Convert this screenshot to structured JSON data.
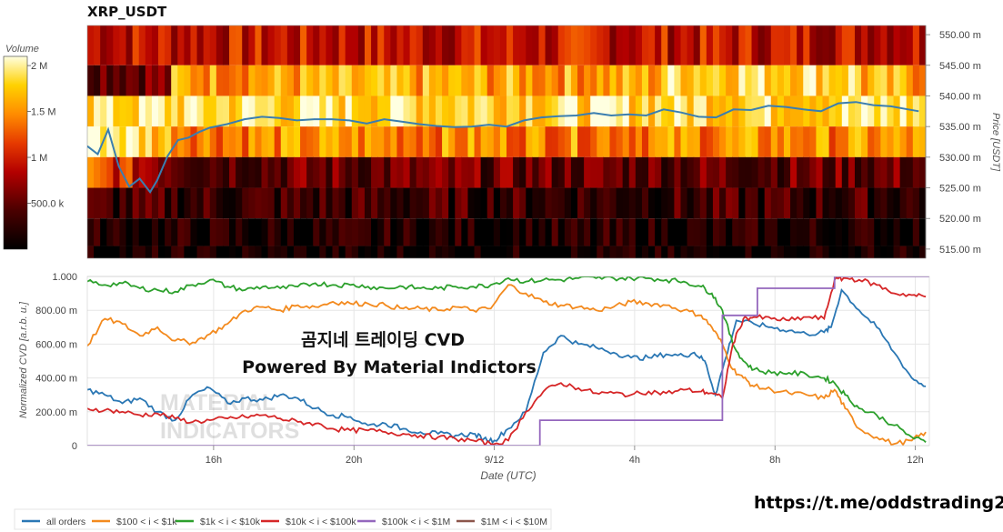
{
  "title": "XRP_USDT",
  "promo_url": "https://t.me/oddstrading2",
  "chart_data": [
    {
      "type": "heatmap",
      "title": "XRP_USDT",
      "ylabel": "Price [USDT]",
      "colorbar_title": "Volume",
      "colorbar_ticks": [
        "2 M",
        "1.5 M",
        "1 M",
        "500.0 k"
      ],
      "colorbar_values": [
        2000000,
        1500000,
        1000000,
        500000
      ],
      "y_ticks": [
        "550.00 m",
        "545.00 m",
        "540.00 m",
        "535.00 m",
        "530.00 m",
        "525.00 m",
        "520.00 m",
        "515.00 m"
      ],
      "y_values": [
        0.55,
        0.545,
        0.54,
        0.535,
        0.53,
        0.525,
        0.52,
        0.515
      ],
      "ylim": [
        0.5135,
        0.5515
      ],
      "price_bins": [
        0.5475,
        0.5425,
        0.5375,
        0.5325,
        0.5275,
        0.5225,
        0.5175,
        0.5135
      ],
      "bin_intensity_levels": [
        0.45,
        0.75,
        0.9,
        0.7,
        0.25,
        0.15,
        0.06,
        0.02
      ],
      "price_line": {
        "color": "#3a7eb0",
        "x_hours": [
          0,
          0.3,
          0.6,
          0.9,
          1.2,
          1.5,
          1.8,
          2.0,
          2.3,
          2.6,
          2.9,
          3.2,
          3.5,
          4.0,
          4.5,
          5.0,
          5.5,
          6.0,
          6.5,
          7.0,
          7.5,
          8.0,
          8.5,
          9.0,
          9.5,
          10.0,
          10.5,
          11.0,
          11.5,
          12.0,
          12.5,
          13.0,
          13.5,
          14.0,
          14.5,
          15.0,
          15.5,
          16.0,
          16.5,
          17.0,
          17.5,
          18.0,
          18.5,
          19.0,
          19.5,
          20.0,
          20.5,
          21.0,
          21.5,
          22.0,
          22.5,
          23.0,
          23.5,
          23.8
        ],
        "price": [
          0.5318,
          0.5305,
          0.5345,
          0.5285,
          0.5252,
          0.5265,
          0.5243,
          0.5262,
          0.5302,
          0.5328,
          0.5332,
          0.5341,
          0.5348,
          0.5354,
          0.5362,
          0.5366,
          0.5364,
          0.536,
          0.5362,
          0.5362,
          0.536,
          0.5355,
          0.5362,
          0.5358,
          0.5354,
          0.5351,
          0.5349,
          0.535,
          0.5353,
          0.535,
          0.536,
          0.5365,
          0.5367,
          0.5368,
          0.5372,
          0.5368,
          0.537,
          0.5368,
          0.5378,
          0.5373,
          0.5366,
          0.5365,
          0.5378,
          0.5377,
          0.5384,
          0.5382,
          0.5378,
          0.5375,
          0.5388,
          0.539,
          0.5385,
          0.5383,
          0.5378,
          0.5375
        ]
      }
    },
    {
      "type": "line",
      "xlabel": "Date (UTC)",
      "ylabel": "Normalized CVD [a.r.b. u.]",
      "y_ticks": [
        "1.000",
        "800.00 m",
        "600.00 m",
        "400.00 m",
        "200.00 m",
        "0"
      ],
      "y_values": [
        1.0,
        0.8,
        0.6,
        0.4,
        0.2,
        0
      ],
      "ylim": [
        0,
        1.0
      ],
      "x_ticks": [
        "16h",
        "20h",
        "9/12",
        "4h",
        "8h",
        "12h"
      ],
      "x_tick_hours": [
        3.6,
        7.6,
        11.6,
        15.6,
        19.6,
        23.6
      ],
      "xlim_hours": [
        0,
        24
      ],
      "grid": true,
      "overlay_lines": [
        "곰지네 트레이딩 CVD",
        "Powered By Material Indictors"
      ],
      "watermark_lines": [
        "MATERIAL",
        "INDICATORS"
      ],
      "legend_position": "bottom-left",
      "series": [
        {
          "name": "all orders",
          "color": "#2a77b4",
          "x_hours": [
            0,
            0.5,
            1.0,
            1.5,
            2.0,
            2.5,
            3.0,
            3.5,
            4.0,
            4.5,
            5.0,
            5.5,
            6.0,
            6.5,
            7.0,
            7.5,
            8.0,
            8.5,
            9.0,
            9.5,
            10.0,
            10.5,
            11.0,
            11.3,
            11.6,
            12.0,
            12.5,
            13.0,
            13.5,
            14.0,
            14.5,
            15.0,
            15.5,
            16.0,
            16.5,
            17.0,
            17.3,
            17.6,
            17.9,
            18.2,
            18.5,
            19.0,
            19.5,
            20.0,
            20.5,
            21.0,
            21.2,
            21.5,
            22.0,
            22.5,
            23.0,
            23.5,
            23.9
          ],
          "values": [
            0.33,
            0.3,
            0.25,
            0.28,
            0.2,
            0.15,
            0.3,
            0.34,
            0.25,
            0.28,
            0.27,
            0.3,
            0.28,
            0.22,
            0.18,
            0.17,
            0.12,
            0.13,
            0.1,
            0.08,
            0.07,
            0.06,
            0.07,
            0.04,
            0.03,
            0.1,
            0.2,
            0.55,
            0.65,
            0.6,
            0.58,
            0.55,
            0.52,
            0.52,
            0.54,
            0.53,
            0.55,
            0.5,
            0.3,
            0.52,
            0.74,
            0.72,
            0.7,
            0.68,
            0.66,
            0.67,
            0.7,
            0.92,
            0.8,
            0.7,
            0.55,
            0.4,
            0.35
          ]
        },
        {
          "name": "$100 < i < $1k",
          "color": "#f38a1e",
          "x_hours": [
            0,
            0.5,
            1.0,
            1.5,
            2.0,
            2.5,
            3.0,
            3.5,
            4.0,
            4.5,
            5.0,
            5.5,
            6.0,
            6.5,
            7.0,
            7.5,
            8.0,
            8.5,
            9.0,
            9.5,
            10.0,
            10.5,
            11.0,
            11.5,
            12.0,
            12.5,
            13.0,
            13.5,
            14.0,
            14.5,
            15.0,
            15.5,
            16.0,
            16.5,
            17.0,
            17.5,
            17.8,
            18.1,
            18.4,
            18.7,
            19.0,
            19.5,
            20.0,
            20.5,
            21.0,
            21.3,
            21.6,
            22.0,
            22.5,
            23.0,
            23.5,
            23.9
          ],
          "values": [
            0.59,
            0.75,
            0.72,
            0.65,
            0.7,
            0.62,
            0.61,
            0.66,
            0.72,
            0.8,
            0.82,
            0.8,
            0.83,
            0.82,
            0.85,
            0.84,
            0.84,
            0.83,
            0.81,
            0.81,
            0.8,
            0.82,
            0.8,
            0.81,
            0.95,
            0.9,
            0.85,
            0.83,
            0.82,
            0.8,
            0.82,
            0.85,
            0.84,
            0.83,
            0.8,
            0.77,
            0.7,
            0.6,
            0.45,
            0.4,
            0.35,
            0.33,
            0.31,
            0.3,
            0.28,
            0.33,
            0.22,
            0.1,
            0.05,
            0.01,
            0.03,
            0.08
          ]
        },
        {
          "name": "$1k < i < $10k",
          "color": "#2ca02c",
          "x_hours": [
            0,
            0.5,
            1.0,
            1.5,
            2.0,
            2.5,
            3.0,
            3.5,
            4.0,
            4.5,
            5.0,
            5.5,
            6.0,
            6.5,
            7.0,
            7.5,
            8.0,
            8.5,
            9.0,
            9.5,
            10.0,
            10.5,
            11.0,
            11.5,
            12.0,
            12.5,
            13.0,
            13.5,
            14.0,
            14.5,
            15.0,
            15.5,
            16.0,
            16.5,
            17.0,
            17.5,
            17.8,
            18.1,
            18.4,
            18.7,
            19.0,
            19.5,
            20.0,
            20.5,
            21.0,
            21.3,
            21.6,
            22.0,
            22.5,
            23.0,
            23.5,
            23.9
          ],
          "values": [
            0.97,
            0.95,
            0.96,
            0.93,
            0.92,
            0.91,
            0.95,
            0.98,
            0.94,
            0.92,
            0.94,
            0.93,
            0.94,
            0.96,
            0.95,
            0.95,
            0.94,
            0.93,
            0.94,
            0.93,
            0.93,
            0.94,
            0.94,
            0.95,
            0.99,
            0.97,
            0.98,
            0.98,
            0.99,
            0.99,
            0.99,
            0.99,
            0.99,
            0.98,
            0.97,
            0.94,
            0.9,
            0.8,
            0.6,
            0.5,
            0.45,
            0.43,
            0.43,
            0.42,
            0.4,
            0.37,
            0.3,
            0.22,
            0.18,
            0.12,
            0.05,
            0.02
          ]
        },
        {
          "name": "$10k < i < $100k",
          "color": "#d62728",
          "x_hours": [
            0,
            0.5,
            1.0,
            1.5,
            2.0,
            2.5,
            3.0,
            3.5,
            4.0,
            4.5,
            5.0,
            5.5,
            6.0,
            6.5,
            7.0,
            7.5,
            8.0,
            8.5,
            9.0,
            9.5,
            10.0,
            10.5,
            11.0,
            11.5,
            12.0,
            12.5,
            13.0,
            13.5,
            14.0,
            14.5,
            15.0,
            15.5,
            16.0,
            16.5,
            17.0,
            17.5,
            17.8,
            18.1,
            18.4,
            18.7,
            19.0,
            19.5,
            20.0,
            20.5,
            21.0,
            21.3,
            21.6,
            22.0,
            22.5,
            23.0,
            23.5,
            23.9
          ],
          "values": [
            0.22,
            0.21,
            0.2,
            0.18,
            0.19,
            0.16,
            0.14,
            0.15,
            0.16,
            0.17,
            0.18,
            0.16,
            0.14,
            0.13,
            0.1,
            0.09,
            0.09,
            0.08,
            0.07,
            0.06,
            0.05,
            0.04,
            0.03,
            0.01,
            0.03,
            0.2,
            0.32,
            0.37,
            0.34,
            0.31,
            0.31,
            0.3,
            0.32,
            0.31,
            0.33,
            0.32,
            0.31,
            0.28,
            0.6,
            0.75,
            0.76,
            0.75,
            0.74,
            0.76,
            0.75,
            0.98,
            0.99,
            0.98,
            0.95,
            0.9,
            0.89,
            0.88
          ]
        },
        {
          "name": "$100k < i < $1M",
          "color": "#9467bd",
          "x_hours": [
            0,
            12.9,
            12.9,
            18.1,
            18.1,
            19.1,
            19.1,
            21.3,
            21.3,
            24
          ],
          "values": [
            0,
            0,
            0.15,
            0.15,
            0.77,
            0.77,
            0.93,
            0.93,
            1.0,
            1.0
          ]
        },
        {
          "name": "$1M < i < $10M",
          "color": "#8c564b",
          "x_hours": [],
          "values": []
        }
      ]
    }
  ]
}
